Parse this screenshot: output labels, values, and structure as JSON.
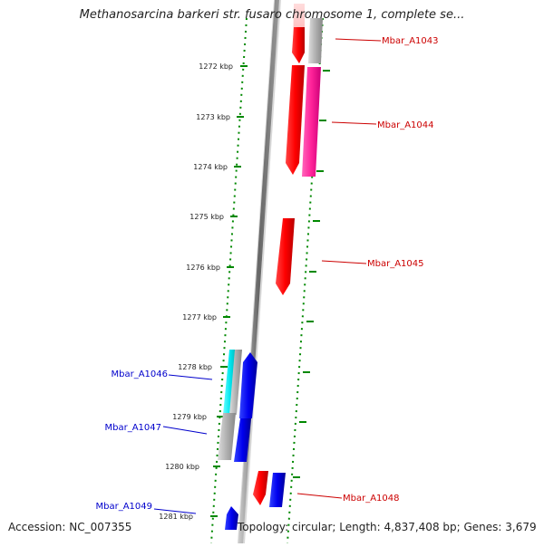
{
  "header": {
    "title": "Methanosarcina barkeri str. fusaro chromosome 1, complete se..."
  },
  "footer": {
    "accession": "Accession: NC_007355",
    "topology": "Topology: circular; Length: 4,837,408 bp; Genes: 3,679"
  },
  "ruler": {
    "ticks": [
      {
        "label": "1272 kbp"
      },
      {
        "label": "1273 kbp"
      },
      {
        "label": "1274 kbp"
      },
      {
        "label": "1275 kbp"
      },
      {
        "label": "1276 kbp"
      },
      {
        "label": "1277 kbp"
      },
      {
        "label": "1278 kbp"
      },
      {
        "label": "1279 kbp"
      },
      {
        "label": "1280 kbp"
      },
      {
        "label": "1281 kbp"
      }
    ]
  },
  "genes": [
    {
      "name": "Mbar_A1043",
      "strand": "forward",
      "color": "#cc0000"
    },
    {
      "name": "Mbar_A1044",
      "strand": "forward",
      "color": "#cc0000"
    },
    {
      "name": "Mbar_A1045",
      "strand": "forward",
      "color": "#cc0000"
    },
    {
      "name": "Mbar_A1046",
      "strand": "reverse",
      "color": "#0000cc"
    },
    {
      "name": "Mbar_A1047",
      "strand": "reverse",
      "color": "#0000cc"
    },
    {
      "name": "Mbar_A1048",
      "strand": "forward",
      "color": "#cc0000"
    },
    {
      "name": "Mbar_A1049",
      "strand": "reverse",
      "color": "#0000cc"
    }
  ],
  "colors": {
    "forward_gene": "#ff0000",
    "reverse_gene": "#0000ee",
    "pink_track": "#ff3399",
    "cyan_track": "#00e5ee",
    "grey_track": "#aaaaaa",
    "axis_green": "#008800",
    "axis_grey": "#777777"
  }
}
